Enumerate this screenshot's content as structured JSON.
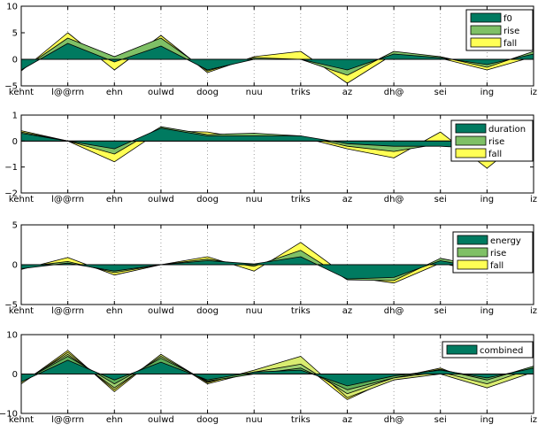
{
  "chart_data": [
    {
      "type": "area",
      "categories": [
        "kehnt",
        "l@@rrn",
        "ehn",
        "oulwd",
        "doog",
        "nuu",
        "triks",
        "az",
        "dh@",
        "sei",
        "ing",
        "iz"
      ],
      "yticks": [
        "10",
        "5",
        "0",
        "−5"
      ],
      "ylim": [
        -5,
        10
      ],
      "grid": true,
      "legend_position": "top-right",
      "series": [
        {
          "name": "f0",
          "color": "#007a60",
          "values": [
            -2.0,
            3.0,
            -0.5,
            2.5,
            -2.0,
            0.0,
            0.0,
            -2.0,
            1.0,
            0.3,
            -1.0,
            1.0
          ]
        },
        {
          "name": "rise",
          "color": "#7fc066",
          "values": [
            -2.0,
            4.0,
            0.5,
            4.0,
            -2.2,
            0.3,
            0.0,
            -3.0,
            1.5,
            0.5,
            -1.5,
            1.5
          ]
        },
        {
          "name": "fall",
          "color": "#ffff55",
          "values": [
            -2.2,
            5.0,
            -2.0,
            4.5,
            -2.5,
            0.5,
            1.5,
            -4.5,
            1.0,
            0.2,
            -2.0,
            0.5
          ]
        }
      ]
    },
    {
      "type": "area",
      "categories": [
        "kehnt",
        "l@@rrn",
        "ehn",
        "oulwd",
        "doog",
        "nuu",
        "triks",
        "az",
        "dh@",
        "sei",
        "ing",
        "iz"
      ],
      "yticks": [
        "1",
        "0",
        "−1",
        "−2"
      ],
      "ylim": [
        -2,
        1
      ],
      "grid": true,
      "legend_position": "top-right",
      "series": [
        {
          "name": "duration",
          "color": "#007a60",
          "values": [
            0.3,
            0.0,
            -0.3,
            0.5,
            0.2,
            0.2,
            0.2,
            -0.1,
            -0.2,
            -0.2,
            -0.3,
            0.5
          ]
        },
        {
          "name": "rise",
          "color": "#7fc066",
          "values": [
            0.35,
            0.0,
            -0.5,
            0.55,
            0.25,
            0.3,
            0.2,
            -0.2,
            -0.4,
            -0.1,
            -0.6,
            0.6
          ]
        },
        {
          "name": "fall",
          "color": "#ffff55",
          "values": [
            0.4,
            0.0,
            -0.8,
            0.4,
            0.35,
            0.05,
            0.15,
            -0.3,
            -0.65,
            0.35,
            -1.05,
            0.4
          ]
        }
      ]
    },
    {
      "type": "area",
      "categories": [
        "kehnt",
        "l@@rrn",
        "ehn",
        "oulwd",
        "doog",
        "nuu",
        "triks",
        "az",
        "dh@",
        "sei",
        "ing",
        "iz"
      ],
      "yticks": [
        "5",
        "0",
        "−5"
      ],
      "ylim": [
        -5,
        5
      ],
      "grid": true,
      "legend_position": "right",
      "series": [
        {
          "name": "energy",
          "color": "#007a60",
          "values": [
            -0.5,
            0.2,
            -0.8,
            0.0,
            0.5,
            0.1,
            1.0,
            -1.8,
            -1.6,
            0.5,
            -0.5,
            -0.5
          ]
        },
        {
          "name": "rise",
          "color": "#7fc066",
          "values": [
            -0.3,
            0.4,
            -1.0,
            0.0,
            0.7,
            -0.2,
            1.8,
            -1.9,
            -2.0,
            0.8,
            -0.3,
            -0.3
          ]
        },
        {
          "name": "fall",
          "color": "#ffff55",
          "values": [
            -0.6,
            0.9,
            -1.3,
            0.0,
            1.0,
            -0.8,
            2.8,
            -1.5,
            -2.3,
            0.2,
            -1.0,
            -0.9
          ]
        }
      ]
    },
    {
      "type": "area",
      "categories": [
        "kehnt",
        "l@@rrn",
        "ehn",
        "oulwd",
        "doog",
        "nuu",
        "triks",
        "az",
        "dh@",
        "sei",
        "ing",
        "iz"
      ],
      "yticks": [
        "10",
        "0",
        "−10"
      ],
      "ylim": [
        -10,
        10
      ],
      "grid": true,
      "legend_position": "top-right",
      "series": [
        {
          "name": "combined",
          "color": "#007a60",
          "values": [
            -2.0,
            3.5,
            -1.5,
            3.0,
            -1.5,
            0.5,
            1.0,
            -3.0,
            -0.5,
            1.0,
            -1.0,
            1.5
          ]
        },
        {
          "name": "",
          "color": "#5fae58",
          "values": [
            -2.0,
            4.5,
            -2.5,
            4.0,
            -1.8,
            0.0,
            1.5,
            -4.0,
            -1.0,
            1.2,
            -1.5,
            2.0
          ]
        },
        {
          "name": "",
          "color": "#9fd070",
          "values": [
            -2.0,
            5.0,
            -3.5,
            4.5,
            -2.0,
            0.5,
            2.5,
            -5.0,
            -1.0,
            0.5,
            -2.5,
            1.5
          ]
        },
        {
          "name": "",
          "color": "#d9ec70",
          "values": [
            -2.5,
            5.5,
            -4.0,
            5.0,
            -2.2,
            1.0,
            4.5,
            -6.0,
            -1.5,
            0.0,
            -3.5,
            0.5
          ]
        },
        {
          "name": "",
          "color": "#ffff55",
          "values": [
            -2.5,
            6.0,
            -4.5,
            5.0,
            -2.5,
            0.5,
            3.0,
            -6.5,
            -1.0,
            1.5,
            -3.0,
            2.0
          ]
        }
      ]
    }
  ]
}
